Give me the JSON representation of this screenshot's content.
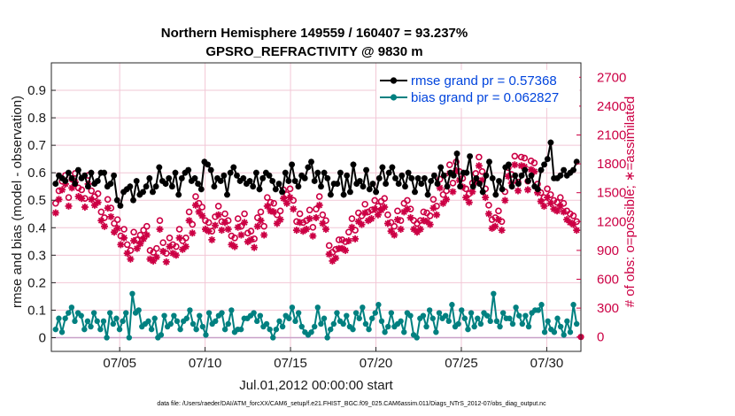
{
  "chart_data": {
    "type": "line",
    "title": "Northern Hemisphere 149559 / 160407 = 93.237%",
    "subtitle": "GPSRO_REFRACTIVITY @ 9830 m",
    "xlabel": "Jul.01,2012 00:00:00 start",
    "ylabel_left": "rmse and bias (model - observation)",
    "ylabel_right": "# of obs: o=possible; ∗=assimilated",
    "footer": "data file: /Users/raeder/DAI/ATM_forcXX/CAM6_setup/f.e21.FHIST_BGC.f09_025.CAM6assim.011/Diags_NTrS_2012-07/obs_diag_output.nc",
    "x_tick_labels": [
      "07/05",
      "07/10",
      "07/15",
      "07/20",
      "07/25",
      "07/30"
    ],
    "x_tick_days": [
      5,
      10,
      15,
      20,
      25,
      30
    ],
    "xlim": [
      1,
      32
    ],
    "ylim_left": [
      -0.05,
      1.0
    ],
    "ylim_right": [
      -150,
      2850
    ],
    "y_ticks_left": [
      "0",
      "0.1",
      "0.2",
      "0.3",
      "0.4",
      "0.5",
      "0.6",
      "0.7",
      "0.8",
      "0.9"
    ],
    "y_ticks_right": [
      "0",
      "300",
      "600",
      "900",
      "1200",
      "1500",
      "1800",
      "2100",
      "2400",
      "2700"
    ],
    "grid": true,
    "legend_position": "top-right",
    "colors": {
      "rmse": "#000000",
      "bias": "#008080",
      "obs": "#cc0044",
      "legend_text": "#0044dd",
      "grid": "#f2c7d6"
    },
    "series": [
      {
        "name": "rmse grand pr = 0.57368",
        "style": "line-star",
        "values": [
          0.56,
          0.59,
          0.58,
          0.57,
          0.6,
          0.58,
          0.56,
          0.61,
          0.58,
          0.59,
          0.55,
          0.6,
          0.56,
          0.57,
          0.6,
          0.6,
          0.55,
          0.56,
          0.59,
          0.5,
          0.48,
          0.53,
          0.54,
          0.55,
          0.5,
          0.57,
          0.52,
          0.53,
          0.55,
          0.58,
          0.53,
          0.55,
          0.62,
          0.57,
          0.56,
          0.58,
          0.55,
          0.6,
          0.52,
          0.58,
          0.6,
          0.61,
          0.57,
          0.58,
          0.56,
          0.54,
          0.64,
          0.63,
          0.61,
          0.55,
          0.58,
          0.57,
          0.59,
          0.52,
          0.6,
          0.62,
          0.59,
          0.57,
          0.58,
          0.56,
          0.57,
          0.55,
          0.6,
          0.54,
          0.58,
          0.6,
          0.59,
          0.57,
          0.54,
          0.56,
          0.53,
          0.6,
          0.57,
          0.63,
          0.57,
          0.55,
          0.59,
          0.58,
          0.62,
          0.64,
          0.57,
          0.6,
          0.55,
          0.6,
          0.58,
          0.52,
          0.56,
          0.56,
          0.6,
          0.52,
          0.59,
          0.53,
          0.63,
          0.56,
          0.57,
          0.55,
          0.61,
          0.54,
          0.56,
          0.53,
          0.58,
          0.62,
          0.56,
          0.6,
          0.62,
          0.58,
          0.56,
          0.59,
          0.55,
          0.6,
          0.58,
          0.53,
          0.58,
          0.56,
          0.58,
          0.52,
          0.57,
          0.59,
          0.56,
          0.62,
          0.59,
          0.55,
          0.6,
          0.59,
          0.67,
          0.55,
          0.6,
          0.6,
          0.66,
          0.55,
          0.58,
          0.56,
          0.53,
          0.59,
          0.64,
          0.58,
          0.52,
          0.57,
          0.54,
          0.62,
          0.63,
          0.55,
          0.59,
          0.56,
          0.59,
          0.61,
          0.57,
          0.59,
          0.55,
          0.54,
          0.61,
          0.63,
          0.65,
          0.71,
          0.58,
          0.58,
          0.59,
          0.61,
          0.59,
          0.6,
          0.61,
          0.64
        ]
      },
      {
        "name": "bias grand pr = 0.062827",
        "style": "line-dot",
        "values": [
          0.03,
          0.07,
          0.02,
          0.07,
          0.09,
          0.11,
          0.06,
          0.09,
          0.08,
          0.03,
          0.06,
          0.04,
          0.09,
          0.06,
          0.03,
          0.06,
          0.0,
          0.09,
          0.05,
          0.07,
          0.03,
          0.06,
          0.09,
          0.0,
          0.16,
          0.09,
          0.1,
          0.04,
          0.05,
          0.06,
          0.03,
          0.07,
          0.0,
          0.01,
          0.08,
          0.04,
          0.05,
          0.08,
          0.06,
          0.03,
          0.06,
          0.07,
          0.1,
          0.05,
          0.03,
          0.08,
          0.04,
          0.01,
          0.09,
          0.05,
          0.06,
          0.08,
          0.09,
          0.03,
          0.05,
          0.1,
          0.02,
          0.03,
          0.03,
          0.07,
          0.07,
          0.08,
          0.09,
          0.06,
          0.08,
          0.04,
          0.05,
          0.03,
          0.0,
          0.03,
          0.06,
          0.04,
          0.08,
          0.07,
          0.11,
          0.06,
          0.09,
          0.04,
          0.02,
          0.01,
          0.02,
          0.04,
          0.11,
          0.05,
          0.07,
          0.0,
          0.03,
          0.05,
          0.09,
          0.06,
          0.05,
          0.08,
          0.04,
          0.03,
          0.09,
          0.07,
          0.11,
          0.05,
          0.03,
          0.07,
          0.09,
          0.12,
          0.06,
          0.02,
          0.04,
          0.09,
          0.04,
          0.05,
          0.06,
          0.02,
          0.09,
          0.08,
          0.01,
          0.0,
          0.07,
          0.08,
          0.04,
          0.1,
          0.07,
          0.02,
          0.09,
          0.07,
          0.08,
          0.06,
          0.12,
          0.04,
          0.05,
          0.1,
          0.07,
          0.03,
          0.09,
          0.04,
          0.07,
          0.05,
          0.09,
          0.08,
          0.06,
          0.16,
          0.06,
          0.04,
          0.09,
          0.07,
          0.07,
          0.05,
          0.11,
          0.08,
          0.05,
          0.08,
          0.04,
          0.09,
          0.1,
          0.1,
          0.12,
          0.02,
          0.06,
          0.03,
          0.02,
          0.07,
          0.04,
          0.01,
          0.06,
          0.02,
          0.12,
          0.05
        ]
      },
      {
        "name": "possible",
        "style": "circle",
        "axis": "right",
        "values": [
          1390,
          1520,
          1620,
          1680,
          1450,
          1640,
          1700,
          1550,
          1530,
          1440,
          1680,
          1520,
          1460,
          1490,
          1300,
          1240,
          1430,
          1340,
          1180,
          1220,
          1050,
          1120,
          960,
          900,
          1090,
          1010,
          1060,
          1110,
          1150,
          900,
          880,
          920,
          1210,
          980,
          870,
          1030,
          960,
          940,
          1120,
          1000,
          1030,
          1300,
          1170,
          1460,
          1390,
          1350,
          1210,
          1190,
          1100,
          1250,
          1360,
          1200,
          1280,
          1210,
          1050,
          1030,
          1230,
          1150,
          1280,
          1080,
          1100,
          1020,
          1240,
          1300,
          1150,
          1450,
          1400,
          1390,
          1270,
          1310,
          1530,
          1480,
          1540,
          1420,
          1200,
          1280,
          1190,
          1210,
          1320,
          1140,
          1330,
          1460,
          1270,
          1210,
          950,
          880,
          910,
          1010,
          1010,
          990,
          1090,
          1230,
          1110,
          1290,
          1260,
          1380,
          1300,
          1320,
          1420,
          1360,
          1410,
          1440,
          1270,
          1190,
          1150,
          1310,
          1210,
          1390,
          1420,
          1330,
          1210,
          1180,
          1210,
          1300,
          1290,
          1260,
          1430,
          1360,
          1640,
          1480,
          1520,
          1790,
          1600,
          1820,
          1720,
          1650,
          1540,
          1490,
          1600,
          1700,
          1870,
          1720,
          1540,
          1370,
          1220,
          1240,
          1310,
          1200,
          1510,
          1760,
          1690,
          1880,
          1610,
          1870,
          1860,
          1620,
          1830,
          1810,
          1590,
          1500,
          1450,
          1540,
          1480,
          1420,
          1400,
          1450,
          1390,
          1310,
          1280,
          1260,
          1200
        ]
      },
      {
        "name": "assimilated",
        "style": "star",
        "axis": "right",
        "values": [
          1290,
          1430,
          1530,
          1590,
          1360,
          1550,
          1610,
          1460,
          1440,
          1350,
          1590,
          1430,
          1370,
          1400,
          1210,
          1150,
          1340,
          1250,
          1090,
          1130,
          960,
          1030,
          870,
          810,
          1000,
          920,
          970,
          1020,
          1060,
          810,
          790,
          830,
          1120,
          890,
          780,
          940,
          870,
          850,
          1030,
          910,
          940,
          1210,
          1080,
          1370,
          1300,
          1260,
          1120,
          1100,
          1010,
          1160,
          1270,
          1110,
          1190,
          1120,
          960,
          940,
          1140,
          1060,
          1190,
          990,
          1010,
          930,
          1150,
          1210,
          1060,
          1360,
          1310,
          1300,
          1180,
          1220,
          1440,
          1390,
          1450,
          1330,
          1110,
          1190,
          1100,
          1120,
          1230,
          1050,
          1240,
          1370,
          1180,
          1120,
          860,
          790,
          820,
          920,
          920,
          900,
          1000,
          1140,
          1020,
          1200,
          1170,
          1290,
          1210,
          1230,
          1330,
          1270,
          1320,
          1350,
          1180,
          1100,
          1060,
          1220,
          1120,
          1300,
          1330,
          1240,
          1120,
          1090,
          1120,
          1210,
          1200,
          1170,
          1340,
          1270,
          1550,
          1390,
          1430,
          1700,
          1510,
          1730,
          1630,
          1560,
          1450,
          1400,
          1510,
          1610,
          1780,
          1630,
          1450,
          1280,
          1130,
          1150,
          1220,
          1110,
          1420,
          1670,
          1600,
          1790,
          1520,
          1780,
          1770,
          1530,
          1740,
          1720,
          1500,
          1410,
          1360,
          1450,
          1390,
          1330,
          1310,
          1360,
          1300,
          1220,
          1190,
          1170,
          1110
        ]
      }
    ]
  }
}
